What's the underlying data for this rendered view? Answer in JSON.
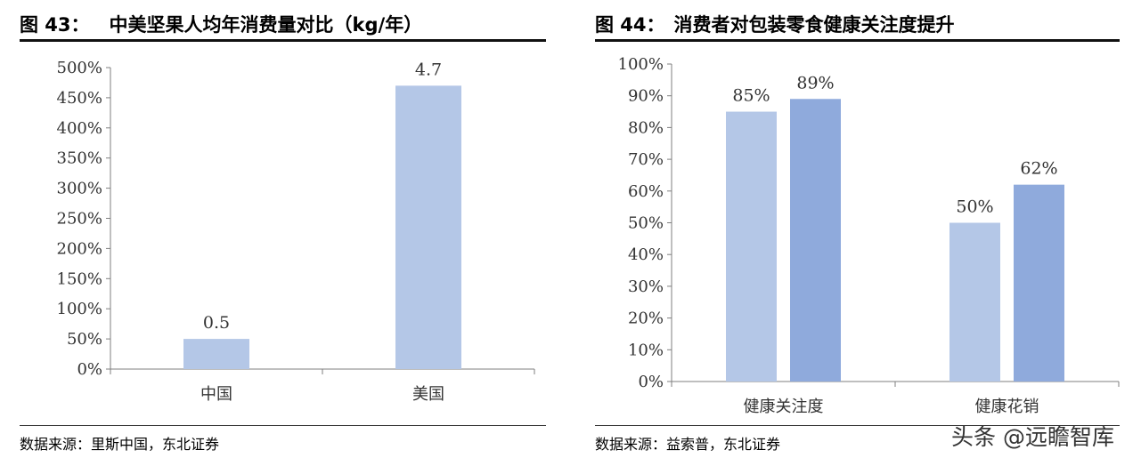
{
  "charts": [
    {
      "figure_label": "图 43：",
      "title": "中美坚果人均年消费量对比（kg/年）",
      "source": "数据来源：里斯中国，东北证券"
    },
    {
      "figure_label": "图 44：",
      "title": "消费者对包装零食健康关注度提升",
      "source": "数据来源：益索普，东北证券"
    }
  ],
  "watermark": "头条 @远瞻智库",
  "chart_data": [
    {
      "type": "bar",
      "title": "中美坚果人均年消费量对比（kg/年）",
      "categories": [
        "中国",
        "美国"
      ],
      "values": [
        50,
        470
      ],
      "data_labels": [
        "0.5",
        "4.7"
      ],
      "ylim": [
        0,
        500
      ],
      "y_ticks": [
        0,
        50,
        100,
        150,
        200,
        250,
        300,
        350,
        400,
        450,
        500
      ],
      "y_tick_format": "percent",
      "colors": [
        "#b4c7e7"
      ],
      "grid": false
    },
    {
      "type": "bar",
      "title": "消费者对包装零食健康关注度提升",
      "categories": [
        "健康关注度",
        "健康花销"
      ],
      "series": [
        {
          "values": [
            85,
            50
          ],
          "color": "#b4c7e7"
        },
        {
          "values": [
            89,
            62
          ],
          "color": "#8faadc"
        }
      ],
      "data_labels": [
        [
          "85%",
          "50%"
        ],
        [
          "89%",
          "62%"
        ]
      ],
      "ylim": [
        0,
        100
      ],
      "y_ticks": [
        0,
        10,
        20,
        30,
        40,
        50,
        60,
        70,
        80,
        90,
        100
      ],
      "y_tick_format": "percent",
      "grid": false
    }
  ]
}
